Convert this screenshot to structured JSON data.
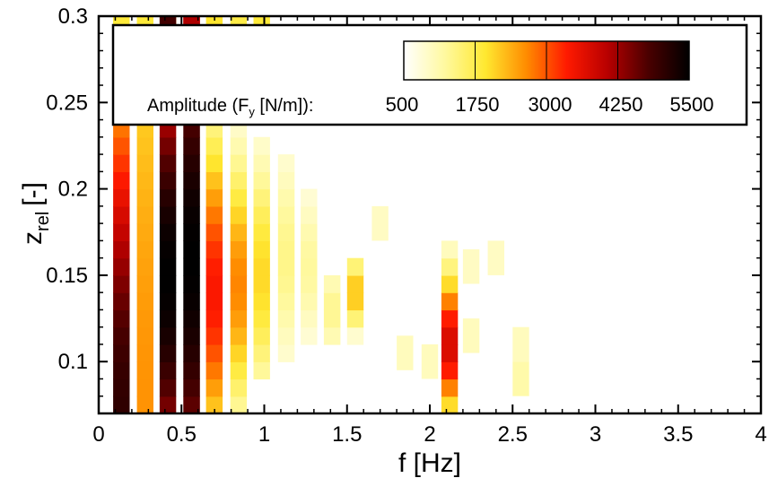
{
  "chart_data": {
    "type": "heatmap",
    "xlabel": "f [Hz]",
    "ylabel_main": "z",
    "ylabel_sub": "rel",
    "ylabel_unit": "[-]",
    "xlim": [
      0,
      4
    ],
    "ylim": [
      0.07,
      0.3
    ],
    "x_ticks": [
      "0",
      "0.5",
      "1",
      "1.5",
      "2",
      "2.5",
      "3",
      "3.5",
      "4"
    ],
    "y_ticks": [
      "0.1",
      "0.15",
      "0.2",
      "0.25",
      "0.3"
    ],
    "colorbar": {
      "label_prefix": "Amplitude (F",
      "label_sub": "y",
      "label_suffix": " [N/m]):",
      "min": 0,
      "max": 5500,
      "tick_values": [
        500,
        1750,
        3000,
        4250,
        5500
      ],
      "tick_labels": [
        "500",
        "1750",
        "3000",
        "4250",
        "5500"
      ],
      "colors": [
        "#ffffff",
        "#fff9a0",
        "#ffe830",
        "#ff8c00",
        "#ff1a00",
        "#b80000",
        "#4a0000",
        "#000000"
      ]
    },
    "y_bins": [
      0.07,
      0.08,
      0.09,
      0.1,
      0.11,
      0.12,
      0.13,
      0.14,
      0.15,
      0.16,
      0.17,
      0.18,
      0.19,
      0.2,
      0.21,
      0.22,
      0.23,
      0.24,
      0.25,
      0.26,
      0.27,
      0.28,
      0.29
    ],
    "frequency_bins": [
      {
        "f": 0.137,
        "peak": 5000,
        "z_peak": 0.07,
        "spread": 0.2,
        "z_min": 0.07,
        "z_max": 0.3
      },
      {
        "f": 0.281,
        "peak": 2300,
        "z_peak": 0.07,
        "spread": 0.35,
        "z_min": 0.07,
        "z_max": 0.3
      },
      {
        "f": 0.418,
        "peak": 5500,
        "z_peak": 0.15,
        "spread": 0.16,
        "z_min": 0.07,
        "z_max": 0.3
      },
      {
        "f": 0.561,
        "peak": 5500,
        "z_peak": 0.16,
        "spread": 0.2,
        "z_min": 0.07,
        "z_max": 0.3
      },
      {
        "f": 0.698,
        "peak": 3200,
        "z_peak": 0.14,
        "spread": 0.09,
        "z_min": 0.07,
        "z_max": 0.3
      },
      {
        "f": 0.845,
        "peak": 2400,
        "z_peak": 0.145,
        "spread": 0.07,
        "z_min": 0.07,
        "z_max": 0.3
      },
      {
        "f": 0.985,
        "peak": 1700,
        "z_peak": 0.15,
        "spread": 0.065,
        "z_min": 0.09,
        "z_max": 0.3
      },
      {
        "f": 1.133,
        "peak": 950,
        "z_peak": 0.16,
        "spread": 0.06,
        "z_min": 0.07,
        "z_max": 0.22
      },
      {
        "f": 1.27,
        "peak": 800,
        "z_peak": 0.155,
        "spread": 0.045,
        "z_min": 0.11,
        "z_max": 0.2
      },
      {
        "f": 1.41,
        "peak": 900,
        "z_peak": 0.13,
        "spread": 0.025,
        "z_min": 0.07,
        "z_max": 0.16
      },
      {
        "f": 1.55,
        "peak": 1900,
        "z_peak": 0.14,
        "spread": 0.02,
        "z_min": 0.07,
        "z_max": 0.16
      },
      {
        "f": 2.12,
        "peak": 3600,
        "z_peak": 0.11,
        "spread": 0.04,
        "z_min": 0.07,
        "z_max": 0.22
      }
    ],
    "patches": [
      {
        "f": 1.7,
        "z": 0.18,
        "v": 500
      },
      {
        "f": 1.85,
        "z": 0.105,
        "v": 550
      },
      {
        "f": 2.0,
        "z": 0.1,
        "v": 550
      },
      {
        "f": 2.25,
        "z": 0.155,
        "v": 500
      },
      {
        "f": 2.25,
        "z": 0.115,
        "v": 550
      },
      {
        "f": 2.4,
        "z": 0.16,
        "v": 500
      },
      {
        "f": 2.55,
        "z": 0.11,
        "v": 550
      },
      {
        "f": 2.55,
        "z": 0.09,
        "v": 700
      }
    ],
    "top_strip": [
      {
        "f": 0.137,
        "v": 1500
      },
      {
        "f": 0.281,
        "v": 1500
      },
      {
        "f": 0.418,
        "v": 4800
      },
      {
        "f": 0.561,
        "v": 4000
      },
      {
        "f": 0.698,
        "v": 1600
      },
      {
        "f": 0.845,
        "v": 1400
      },
      {
        "f": 0.985,
        "v": 1500
      }
    ]
  }
}
